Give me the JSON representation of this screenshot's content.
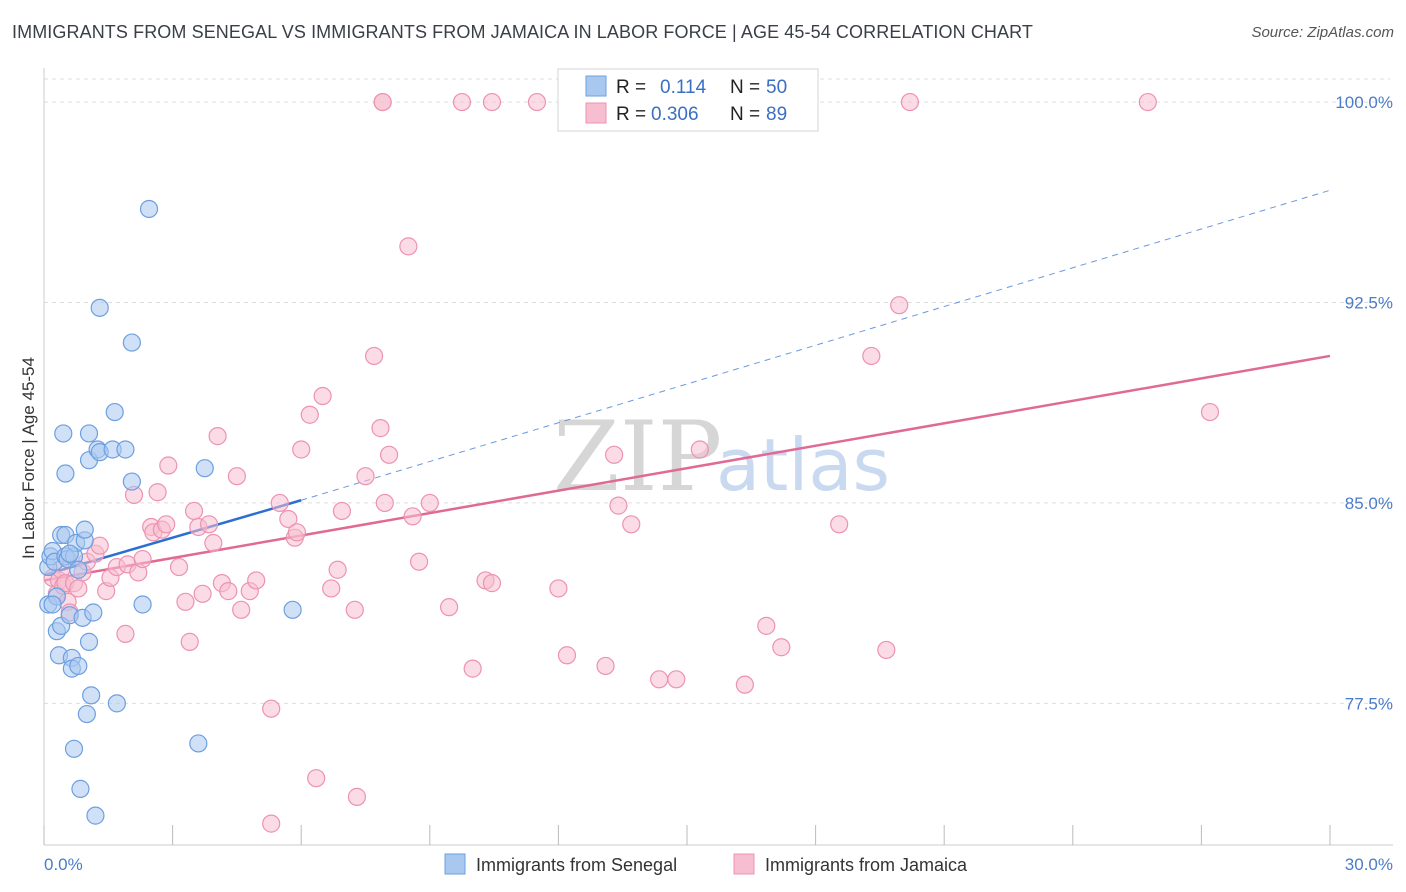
{
  "title": "IMMIGRANTS FROM SENEGAL VS IMMIGRANTS FROM JAMAICA IN LABOR FORCE | AGE 45-54 CORRELATION CHART",
  "source": "Source: ZipAtlas.com",
  "watermark": {
    "zip": "ZIP",
    "atlas": "atlas"
  },
  "colors": {
    "senegal_fill": "#a9c8f0",
    "senegal_stroke": "#6d9fe0",
    "senegal_line": "#2c6fd1",
    "jamaica_fill": "#f7bdd0",
    "jamaica_stroke": "#ec93b0",
    "jamaica_line": "#e06a95",
    "grid": "#dddddd",
    "axis_text": "#4a7cc9"
  },
  "legend": {
    "rows": [
      {
        "r_label": "R =",
        "r_value": "0.114",
        "n_label": "N =",
        "n_value": "50"
      },
      {
        "r_label": "R =",
        "r_value": "0.306",
        "n_label": "N =",
        "n_value": "89"
      }
    ]
  },
  "chart_data": {
    "type": "scatter",
    "title": "IMMIGRANTS FROM SENEGAL VS IMMIGRANTS FROM JAMAICA IN LABOR FORCE | AGE 45-54 CORRELATION CHART",
    "xlabel": "",
    "ylabel": "In Labor Force | Age 45-54",
    "xlim": [
      0,
      30
    ],
    "ylim": [
      72.2,
      101.2
    ],
    "x_tick_labels": [
      "0.0%",
      "30.0%"
    ],
    "y_ticks": [
      77.5,
      85.0,
      92.5,
      100.0
    ],
    "y_tick_labels": [
      "77.5%",
      "85.0%",
      "92.5%",
      "100.0%"
    ],
    "grid": true,
    "legend_position": "bottom",
    "series": [
      {
        "name": "Immigrants from Senegal",
        "r": 0.114,
        "n": 50,
        "trend": {
          "x0": 0.0,
          "y0": 82.3,
          "x1": 6.0,
          "y1": 85.1,
          "dashed_to_x": 30.0,
          "dashed_to_y": 96.7
        },
        "points": [
          [
            0.1,
            82.6
          ],
          [
            0.1,
            81.2
          ],
          [
            0.15,
            83.0
          ],
          [
            0.2,
            83.2
          ],
          [
            0.25,
            82.8
          ],
          [
            0.3,
            81.5
          ],
          [
            0.3,
            80.2
          ],
          [
            0.35,
            79.3
          ],
          [
            0.4,
            80.4
          ],
          [
            0.4,
            83.8
          ],
          [
            0.45,
            87.6
          ],
          [
            0.5,
            86.1
          ],
          [
            0.5,
            83.8
          ],
          [
            0.5,
            83.0
          ],
          [
            0.55,
            82.9
          ],
          [
            0.6,
            80.8
          ],
          [
            0.65,
            79.2
          ],
          [
            0.65,
            78.8
          ],
          [
            0.7,
            75.8
          ],
          [
            0.7,
            83.0
          ],
          [
            0.75,
            83.5
          ],
          [
            0.8,
            78.9
          ],
          [
            0.8,
            82.5
          ],
          [
            0.85,
            74.3
          ],
          [
            0.9,
            80.7
          ],
          [
            0.95,
            83.6
          ],
          [
            0.95,
            84.0
          ],
          [
            1.0,
            77.1
          ],
          [
            1.05,
            79.8
          ],
          [
            1.05,
            86.6
          ],
          [
            1.05,
            87.6
          ],
          [
            1.1,
            77.8
          ],
          [
            1.15,
            80.9
          ],
          [
            1.2,
            73.3
          ],
          [
            1.25,
            87.0
          ],
          [
            1.3,
            92.3
          ],
          [
            1.3,
            86.9
          ],
          [
            1.6,
            87.0
          ],
          [
            1.65,
            88.4
          ],
          [
            1.7,
            77.5
          ],
          [
            1.9,
            87.0
          ],
          [
            2.05,
            91.0
          ],
          [
            2.05,
            85.8
          ],
          [
            2.3,
            81.2
          ],
          [
            2.45,
            96.0
          ],
          [
            3.6,
            76.0
          ],
          [
            3.75,
            86.3
          ],
          [
            5.8,
            81.0
          ],
          [
            0.2,
            81.2
          ],
          [
            0.6,
            83.1
          ]
        ]
      },
      {
        "name": "Immigrants from Jamaica",
        "r": 0.306,
        "n": 89,
        "trend": {
          "x0": 0.0,
          "y0": 82.1,
          "x1": 30.0,
          "y1": 90.5
        },
        "points": [
          [
            0.2,
            82.2
          ],
          [
            0.3,
            81.6
          ],
          [
            0.35,
            82.1
          ],
          [
            0.4,
            82.5
          ],
          [
            0.45,
            81.9
          ],
          [
            0.5,
            82.0
          ],
          [
            0.55,
            81.3
          ],
          [
            0.6,
            80.9
          ],
          [
            0.7,
            82.0
          ],
          [
            0.8,
            81.8
          ],
          [
            0.9,
            82.4
          ],
          [
            1.0,
            82.8
          ],
          [
            1.2,
            83.1
          ],
          [
            1.3,
            83.4
          ],
          [
            1.45,
            81.7
          ],
          [
            1.55,
            82.2
          ],
          [
            1.7,
            82.6
          ],
          [
            1.9,
            80.1
          ],
          [
            1.95,
            82.7
          ],
          [
            2.1,
            85.3
          ],
          [
            2.2,
            82.4
          ],
          [
            2.3,
            82.9
          ],
          [
            2.5,
            84.1
          ],
          [
            2.55,
            83.9
          ],
          [
            2.65,
            85.4
          ],
          [
            2.75,
            84.0
          ],
          [
            2.85,
            84.2
          ],
          [
            2.9,
            86.4
          ],
          [
            3.15,
            82.6
          ],
          [
            3.3,
            81.3
          ],
          [
            3.4,
            79.8
          ],
          [
            3.5,
            84.7
          ],
          [
            3.6,
            84.1
          ],
          [
            3.7,
            81.6
          ],
          [
            3.85,
            84.2
          ],
          [
            3.95,
            83.5
          ],
          [
            4.05,
            87.5
          ],
          [
            4.15,
            82.0
          ],
          [
            4.3,
            81.7
          ],
          [
            4.5,
            86.0
          ],
          [
            4.6,
            81.0
          ],
          [
            4.8,
            81.7
          ],
          [
            4.95,
            82.1
          ],
          [
            5.3,
            77.3
          ],
          [
            5.3,
            73.0
          ],
          [
            5.5,
            85.0
          ],
          [
            5.7,
            84.4
          ],
          [
            5.85,
            83.7
          ],
          [
            5.9,
            83.9
          ],
          [
            6.0,
            87.0
          ],
          [
            6.2,
            88.3
          ],
          [
            6.35,
            74.7
          ],
          [
            6.5,
            89.0
          ],
          [
            6.7,
            81.8
          ],
          [
            6.85,
            82.5
          ],
          [
            6.95,
            84.7
          ],
          [
            7.25,
            81.0
          ],
          [
            7.3,
            74.0
          ],
          [
            7.5,
            86.0
          ],
          [
            7.7,
            90.5
          ],
          [
            7.85,
            87.8
          ],
          [
            7.95,
            85.0
          ],
          [
            8.05,
            86.8
          ],
          [
            8.5,
            94.6
          ],
          [
            8.6,
            84.5
          ],
          [
            8.75,
            82.8
          ],
          [
            9.0,
            85.0
          ],
          [
            9.45,
            81.1
          ],
          [
            10.0,
            78.8
          ],
          [
            10.3,
            82.1
          ],
          [
            10.45,
            82.0
          ],
          [
            12.0,
            81.8
          ],
          [
            12.2,
            79.3
          ],
          [
            13.1,
            78.9
          ],
          [
            13.3,
            86.8
          ],
          [
            13.4,
            84.9
          ],
          [
            13.7,
            84.2
          ],
          [
            14.35,
            78.4
          ],
          [
            14.75,
            78.4
          ],
          [
            15.3,
            87.0
          ],
          [
            16.35,
            78.2
          ],
          [
            16.85,
            80.4
          ],
          [
            17.2,
            79.6
          ],
          [
            18.55,
            84.2
          ],
          [
            19.3,
            90.5
          ],
          [
            19.65,
            79.5
          ],
          [
            19.95,
            92.4
          ],
          [
            27.2,
            88.4
          ],
          [
            7.9,
            100.0
          ]
        ],
        "top_row_points": [
          [
            7.9,
            100.0
          ],
          [
            9.75,
            100.0
          ],
          [
            10.45,
            100.0
          ],
          [
            11.5,
            100.0
          ],
          [
            20.2,
            100.0
          ],
          [
            25.75,
            100.0
          ]
        ]
      }
    ]
  },
  "bottom_legend": [
    "Immigrants from Senegal",
    "Immigrants from Jamaica"
  ]
}
